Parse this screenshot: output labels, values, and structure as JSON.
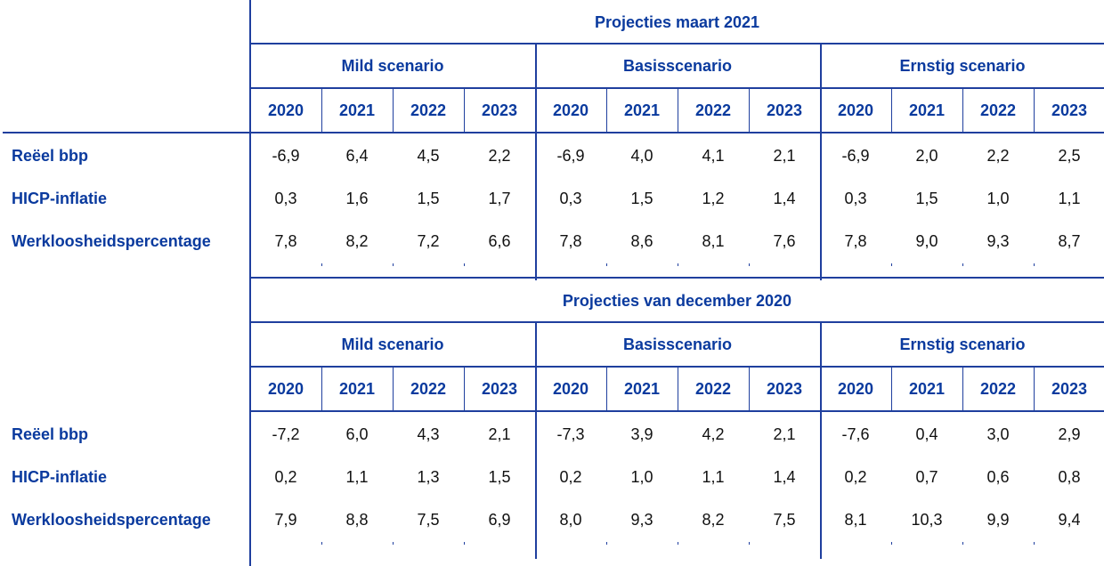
{
  "row_labels": [
    "Reëel bbp",
    "HICP-inflatie",
    "Werkloosheidspercentage"
  ],
  "line_color": "#1f3f9e",
  "text_color": "#0a3a9e",
  "sections": [
    {
      "title": "Projecties maart 2021",
      "scenarios": [
        {
          "name": "Mild scenario",
          "years": [
            "2020",
            "2021",
            "2022",
            "2023"
          ],
          "rows": [
            [
              "-6,9",
              "6,4",
              "4,5",
              "2,2"
            ],
            [
              "0,3",
              "1,6",
              "1,5",
              "1,7"
            ],
            [
              "7,8",
              "8,2",
              "7,2",
              "6,6"
            ]
          ]
        },
        {
          "name": "Basisscenario",
          "years": [
            "2020",
            "2021",
            "2022",
            "2023"
          ],
          "rows": [
            [
              "-6,9",
              "4,0",
              "4,1",
              "2,1"
            ],
            [
              "0,3",
              "1,5",
              "1,2",
              "1,4"
            ],
            [
              "7,8",
              "8,6",
              "8,1",
              "7,6"
            ]
          ]
        },
        {
          "name": "Ernstig scenario",
          "years": [
            "2020",
            "2021",
            "2022",
            "2023"
          ],
          "rows": [
            [
              "-6,9",
              "2,0",
              "2,2",
              "2,5"
            ],
            [
              "0,3",
              "1,5",
              "1,0",
              "1,1"
            ],
            [
              "7,8",
              "9,0",
              "9,3",
              "8,7"
            ]
          ]
        }
      ]
    },
    {
      "title": "Projecties van december 2020",
      "scenarios": [
        {
          "name": "Mild scenario",
          "years": [
            "2020",
            "2021",
            "2022",
            "2023"
          ],
          "rows": [
            [
              "-7,2",
              "6,0",
              "4,3",
              "2,1"
            ],
            [
              "0,2",
              "1,1",
              "1,3",
              "1,5"
            ],
            [
              "7,9",
              "8,8",
              "7,5",
              "6,9"
            ]
          ]
        },
        {
          "name": "Basisscenario",
          "years": [
            "2020",
            "2021",
            "2022",
            "2023"
          ],
          "rows": [
            [
              "-7,3",
              "3,9",
              "4,2",
              "2,1"
            ],
            [
              "0,2",
              "1,0",
              "1,1",
              "1,4"
            ],
            [
              "8,0",
              "9,3",
              "8,2",
              "7,5"
            ]
          ]
        },
        {
          "name": "Ernstig scenario",
          "years": [
            "2020",
            "2021",
            "2022",
            "2023"
          ],
          "rows": [
            [
              "-7,6",
              "0,4",
              "3,0",
              "2,9"
            ],
            [
              "0,2",
              "0,7",
              "0,6",
              "0,8"
            ],
            [
              "8,1",
              "10,3",
              "9,9",
              "9,4"
            ]
          ]
        }
      ]
    }
  ]
}
